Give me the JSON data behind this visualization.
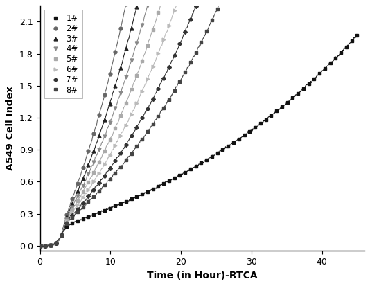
{
  "title": "",
  "xlabel": "Time (in Hour)-RTCA",
  "ylabel": "A549 Cell Index",
  "xlim": [
    0,
    46
  ],
  "ylim": [
    -0.05,
    2.25
  ],
  "xticks": [
    0,
    10,
    20,
    30,
    40
  ],
  "yticks": [
    0.0,
    0.3,
    0.6,
    0.9,
    1.2,
    1.5,
    1.8,
    2.1
  ],
  "series": [
    {
      "label": "1#",
      "color": "#111111",
      "marker": "s",
      "markersize": 3.5,
      "linewidth": 0.8,
      "a": 0.18,
      "b": 0.028,
      "c": 0.8,
      "d": 3.0
    },
    {
      "label": "2#",
      "color": "#666666",
      "marker": "o",
      "markersize": 3.5,
      "linewidth": 0.8,
      "a": 0.18,
      "b": 0.075,
      "c": 2.1,
      "d": 3.0
    },
    {
      "label": "3#",
      "color": "#222222",
      "marker": "^",
      "markersize": 3.5,
      "linewidth": 0.8,
      "a": 0.18,
      "b": 0.068,
      "c": 1.92,
      "d": 3.0
    },
    {
      "label": "4#",
      "color": "#888888",
      "marker": "v",
      "markersize": 3.5,
      "linewidth": 0.8,
      "a": 0.18,
      "b": 0.062,
      "c": 1.82,
      "d": 3.0
    },
    {
      "label": "5#",
      "color": "#aaaaaa",
      "marker": "s",
      "markersize": 3.5,
      "linewidth": 0.8,
      "a": 0.18,
      "b": 0.057,
      "c": 1.68,
      "d": 3.0
    },
    {
      "label": "6#",
      "color": "#bbbbbb",
      "marker": ">",
      "markersize": 3.5,
      "linewidth": 0.8,
      "a": 0.18,
      "b": 0.052,
      "c": 1.55,
      "d": 3.0
    },
    {
      "label": "7#",
      "color": "#333333",
      "marker": "D",
      "markersize": 3.0,
      "linewidth": 0.8,
      "a": 0.18,
      "b": 0.047,
      "c": 1.42,
      "d": 3.0
    },
    {
      "label": "8#",
      "color": "#444444",
      "marker": "s",
      "markersize": 3.5,
      "linewidth": 0.8,
      "a": 0.18,
      "b": 0.043,
      "c": 1.28,
      "d": 3.0
    }
  ],
  "legend_loc": "upper left",
  "legend_fontsize": 8.5,
  "axis_fontsize": 10,
  "tick_fontsize": 9,
  "background_color": "#ffffff",
  "figsize": [
    5.34,
    4.13
  ],
  "dpi": 100,
  "n_points": 500,
  "n_markers": 60
}
